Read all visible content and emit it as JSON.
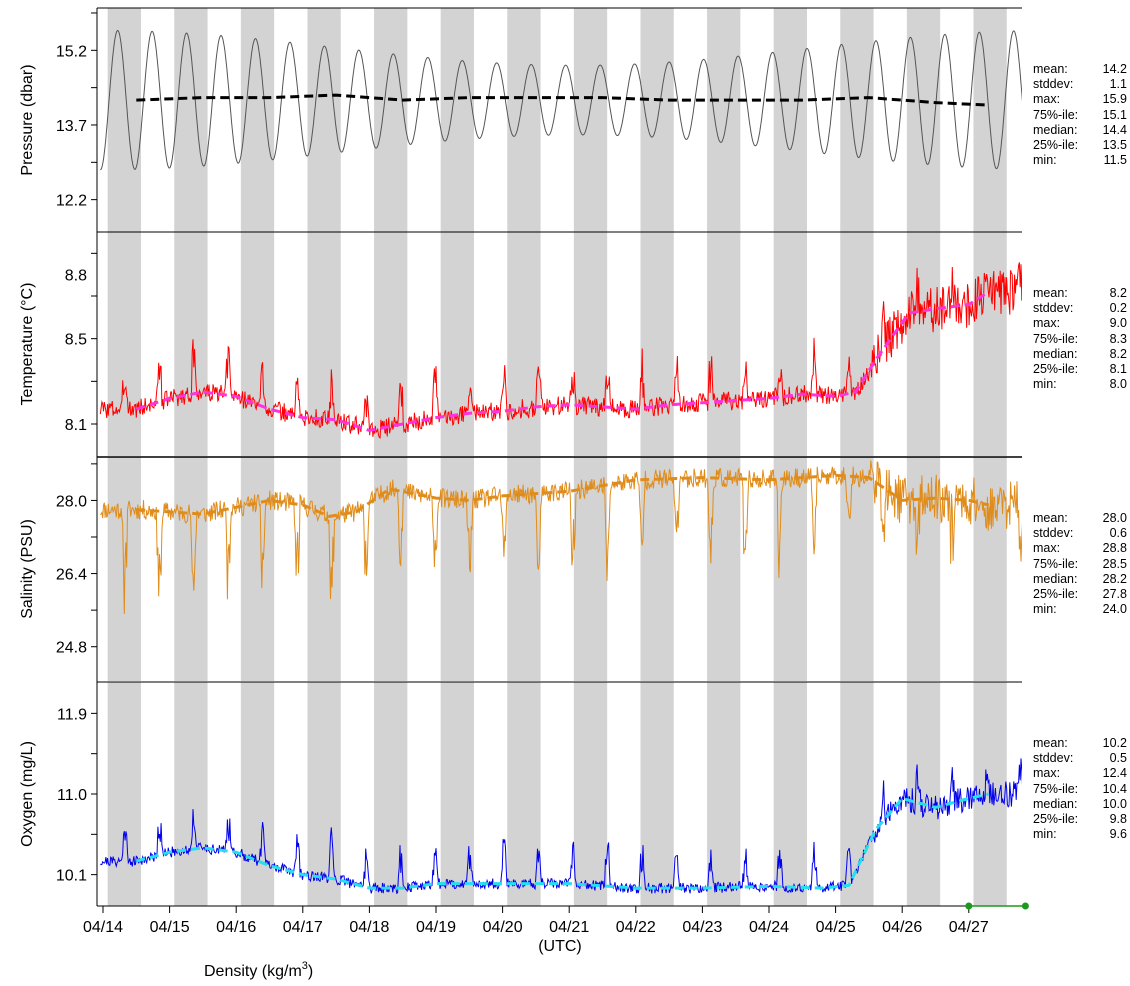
{
  "chart_data": {
    "type": "line",
    "x_axis": {
      "ticks": [
        "04/14",
        "04/15",
        "04/16",
        "04/17",
        "04/18",
        "04/19",
        "04/20",
        "04/21",
        "04/22",
        "04/23",
        "04/24",
        "04/25",
        "04/26",
        "04/27"
      ],
      "xlabel": "(UTC)",
      "extra_label_main": "Density (kg/m",
      "extra_label_sup": "3",
      "extra_label_end": ")",
      "range_days": [
        -0.04,
        13.85
      ]
    },
    "colors": {
      "shade": "#d3d3d3",
      "pressure": "#555555",
      "pressure_mean": "#000000",
      "temperature": "#ff0000",
      "temperature_mean": "#ff33dd",
      "salinity": "#e08c1a",
      "salinity_mean": "#e08c1a",
      "oxygen": "#0000ee",
      "oxygen_mean": "#22e0ee",
      "marker": "#1a9a1a"
    },
    "panels": [
      {
        "id": "pressure",
        "ylabel": "Pressure (dbar)",
        "ylim": [
          11.55,
          16.05
        ],
        "yticks": [
          "12.2",
          "13.7",
          "15.2"
        ],
        "ytick_values": [
          12.2,
          13.7,
          15.2
        ],
        "stats": [
          {
            "k": "mean:",
            "v": "14.2"
          },
          {
            "k": "stddev:",
            "v": "1.1"
          },
          {
            "k": "max:",
            "v": "15.9"
          },
          {
            "k": "75%-ile:",
            "v": "15.1"
          },
          {
            "k": "median:",
            "v": "14.4"
          },
          {
            "k": "25%-ile:",
            "v": "13.5"
          },
          {
            "k": "min:",
            "v": "11.5"
          }
        ],
        "series": [
          {
            "role": "raw",
            "model": "tide",
            "base": 14.2,
            "amp": 1.4,
            "period_days": 0.5175,
            "phase_days": 0.22
          },
          {
            "role": "mean",
            "points": [
              [
                0.5,
                14.2
              ],
              [
                1.5,
                14.25
              ],
              [
                2.5,
                14.25
              ],
              [
                3.5,
                14.3
              ],
              [
                4.5,
                14.2
              ],
              [
                5.5,
                14.25
              ],
              [
                6.5,
                14.25
              ],
              [
                7.5,
                14.25
              ],
              [
                8.5,
                14.2
              ],
              [
                9.5,
                14.2
              ],
              [
                10.5,
                14.2
              ],
              [
                11.5,
                14.25
              ],
              [
                12.5,
                14.15
              ],
              [
                13.3,
                14.1
              ]
            ]
          }
        ]
      },
      {
        "id": "temperature",
        "ylabel": "Temperature (°C)",
        "ylim": [
          7.95,
          9.0
        ],
        "yticks": [
          "8.1",
          "8.5",
          "8.8"
        ],
        "ytick_values": [
          8.1,
          8.5,
          8.8
        ],
        "stats": [
          {
            "k": "mean:",
            "v": "8.2"
          },
          {
            "k": "stddev:",
            "v": "0.2"
          },
          {
            "k": "max:",
            "v": "9.0"
          },
          {
            "k": "75%-ile:",
            "v": "8.3"
          },
          {
            "k": "median:",
            "v": "8.2"
          },
          {
            "k": "25%-ile:",
            "v": "8.1"
          },
          {
            "k": "min:",
            "v": "8.0"
          }
        ],
        "series": [
          {
            "role": "raw",
            "model": "spiky",
            "noise": 0.045,
            "spike_amp": 0.18,
            "spike_sign": 1,
            "seed": 3
          },
          {
            "role": "mean",
            "points": [
              [
                0.5,
                8.17
              ],
              [
                1.0,
                8.22
              ],
              [
                1.5,
                8.25
              ],
              [
                2.0,
                8.23
              ],
              [
                2.5,
                8.17
              ],
              [
                3.0,
                8.13
              ],
              [
                3.5,
                8.12
              ],
              [
                4.0,
                8.07
              ],
              [
                4.5,
                8.1
              ],
              [
                5.0,
                8.13
              ],
              [
                5.5,
                8.15
              ],
              [
                6.0,
                8.16
              ],
              [
                6.5,
                8.18
              ],
              [
                7.0,
                8.19
              ],
              [
                7.5,
                8.18
              ],
              [
                8.0,
                8.17
              ],
              [
                8.5,
                8.19
              ],
              [
                9.0,
                8.2
              ],
              [
                9.5,
                8.21
              ],
              [
                10.0,
                8.22
              ],
              [
                10.5,
                8.24
              ],
              [
                11.0,
                8.23
              ],
              [
                11.3,
                8.25
              ],
              [
                11.6,
                8.4
              ],
              [
                12.1,
                8.62
              ],
              [
                12.5,
                8.64
              ],
              [
                13.0,
                8.66
              ],
              [
                13.3,
                8.72
              ]
            ]
          }
        ]
      },
      {
        "id": "salinity",
        "ylabel": "Salinity (PSU)",
        "ylim": [
          24.05,
          28.95
        ],
        "yticks": [
          "24.8",
          "26.4",
          "28.0"
        ],
        "ytick_values": [
          24.8,
          26.4,
          28.0
        ],
        "stats": [
          {
            "k": "mean:",
            "v": "28.0"
          },
          {
            "k": "stddev:",
            "v": "0.6"
          },
          {
            "k": "max:",
            "v": "28.8"
          },
          {
            "k": "75%-ile:",
            "v": "28.5"
          },
          {
            "k": "median:",
            "v": "28.2"
          },
          {
            "k": "25%-ile:",
            "v": "27.8"
          },
          {
            "k": "min:",
            "v": "24.0"
          }
        ],
        "series": [
          {
            "role": "raw",
            "model": "spiky",
            "noise": 0.22,
            "spike_amp": 1.6,
            "spike_sign": -1,
            "seed": 11
          },
          {
            "role": "mean",
            "points": [
              [
                0.5,
                27.8
              ],
              [
                1.0,
                27.75
              ],
              [
                1.5,
                27.7
              ],
              [
                2.0,
                27.85
              ],
              [
                2.5,
                28.0
              ],
              [
                3.0,
                27.9
              ],
              [
                3.4,
                27.65
              ],
              [
                3.8,
                27.75
              ],
              [
                4.3,
                28.25
              ],
              [
                5.0,
                28.05
              ],
              [
                5.5,
                28.0
              ],
              [
                6.0,
                28.1
              ],
              [
                7.0,
                28.2
              ],
              [
                8.0,
                28.45
              ],
              [
                9.0,
                28.5
              ],
              [
                10.0,
                28.45
              ],
              [
                11.0,
                28.55
              ],
              [
                11.5,
                28.5
              ],
              [
                12.0,
                28.0
              ],
              [
                12.5,
                28.05
              ],
              [
                13.0,
                28.0
              ],
              [
                13.3,
                27.9
              ]
            ]
          }
        ]
      },
      {
        "id": "oxygen",
        "ylabel": "Oxygen (mg/L)",
        "ylim": [
          9.75,
          12.25
        ],
        "yticks": [
          "10.1",
          "11.0",
          "11.9"
        ],
        "ytick_values": [
          10.1,
          11.0,
          11.9
        ],
        "stats": [
          {
            "k": "mean:",
            "v": "10.2"
          },
          {
            "k": "stddev:",
            "v": "0.5"
          },
          {
            "k": "max:",
            "v": "12.4"
          },
          {
            "k": "75%-ile:",
            "v": "10.4"
          },
          {
            "k": "median:",
            "v": "10.0"
          },
          {
            "k": "25%-ile:",
            "v": "9.8"
          },
          {
            "k": "min:",
            "v": "9.6"
          }
        ],
        "series": [
          {
            "role": "raw",
            "model": "spiky",
            "noise": 0.06,
            "spike_amp": 0.4,
            "spike_sign": 1,
            "seed": 21
          },
          {
            "role": "mean",
            "points": [
              [
                0.5,
                10.25
              ],
              [
                1.0,
                10.35
              ],
              [
                1.5,
                10.4
              ],
              [
                2.0,
                10.35
              ],
              [
                2.5,
                10.2
              ],
              [
                3.0,
                10.1
              ],
              [
                3.5,
                10.05
              ],
              [
                4.0,
                9.95
              ],
              [
                4.5,
                9.95
              ],
              [
                5.0,
                10.0
              ],
              [
                6.0,
                10.0
              ],
              [
                7.0,
                10.0
              ],
              [
                8.0,
                9.95
              ],
              [
                9.0,
                9.95
              ],
              [
                10.0,
                9.97
              ],
              [
                10.8,
                9.95
              ],
              [
                11.2,
                9.98
              ],
              [
                11.6,
                10.6
              ],
              [
                12.0,
                10.95
              ],
              [
                12.5,
                10.85
              ],
              [
                13.0,
                10.95
              ],
              [
                13.3,
                11.0
              ]
            ]
          }
        ]
      }
    ],
    "markers": [
      {
        "x": 13.0,
        "y": 9.75
      },
      {
        "x": 13.85,
        "y": 9.75
      }
    ]
  }
}
